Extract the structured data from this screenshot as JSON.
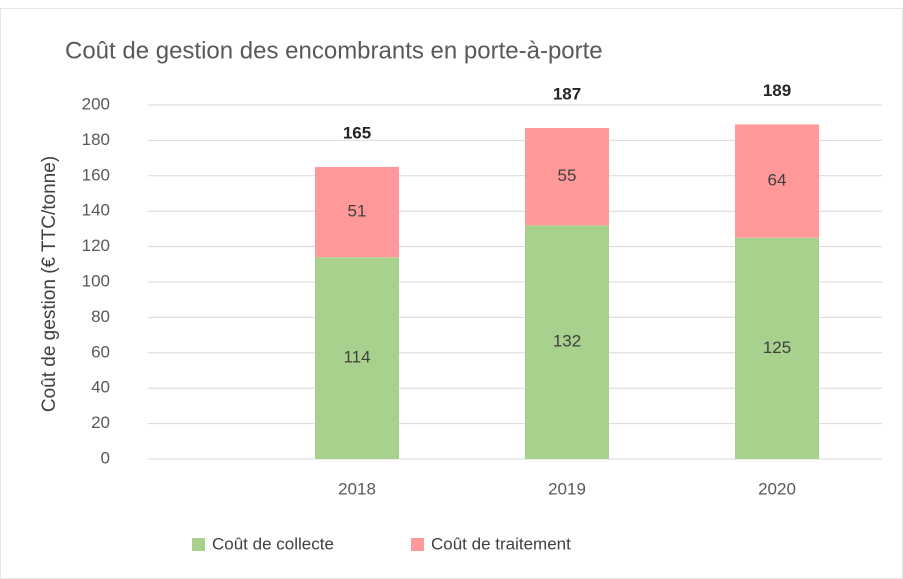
{
  "chart_data": {
    "type": "stacked_bar",
    "title": "Coût de gestion des encombrants en porte-à-porte",
    "y_label": "Coût de gestion (€ TTC/tonne)",
    "categories": [
      "2018",
      "2019",
      "2020"
    ],
    "series": [
      {
        "name": "Coût de collecte",
        "color": "#a9d18e",
        "values": [
          114,
          132,
          125
        ]
      },
      {
        "name": "Coût de traitement",
        "color": "#ff9999",
        "values": [
          51,
          55,
          64
        ]
      }
    ],
    "totals": [
      165,
      187,
      189
    ],
    "ylim": [
      0,
      200
    ],
    "yticks": [
      0,
      20,
      40,
      60,
      80,
      100,
      120,
      140,
      160,
      180,
      200
    ],
    "grid": true,
    "legend": "bottom"
  }
}
